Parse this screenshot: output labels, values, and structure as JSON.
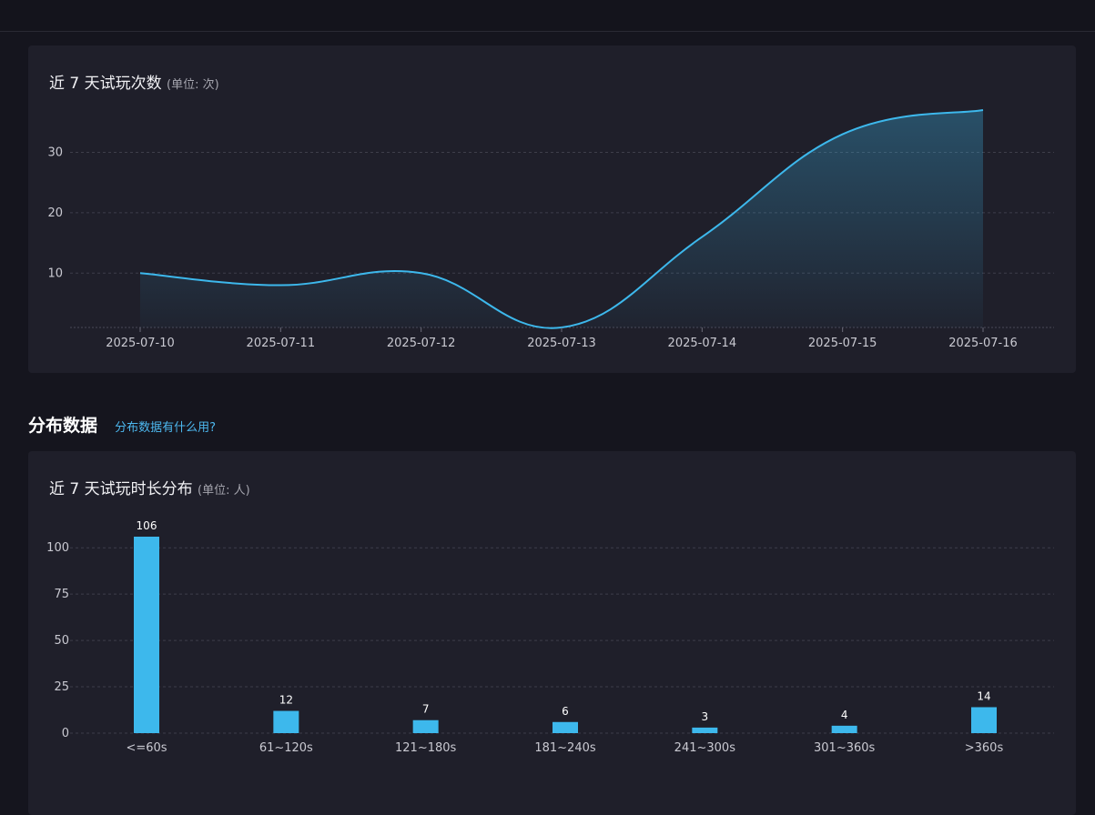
{
  "colors": {
    "accent": "#3db8ec",
    "background": "#15151e",
    "card": "#1f1f2a",
    "grid": "#3e3e4a",
    "tick_text": "#c9c9d1"
  },
  "section": {
    "title": "分布数据",
    "help_link": "分布数据有什么用?"
  },
  "chart_data": [
    {
      "type": "area",
      "title": "近 7 天试玩次数",
      "unit": "(单位: 次)",
      "x": [
        "2025-07-10",
        "2025-07-11",
        "2025-07-12",
        "2025-07-13",
        "2025-07-14",
        "2025-07-15",
        "2025-07-16"
      ],
      "values": [
        10,
        8,
        10,
        1,
        16,
        33,
        37
      ],
      "yticks": [
        10,
        20,
        30
      ],
      "ylim": [
        1,
        37
      ],
      "grid": true,
      "smooth": true
    },
    {
      "type": "bar",
      "title": "近 7 天试玩时长分布",
      "unit": "(单位: 人)",
      "categories": [
        "<=60s",
        "61~120s",
        "121~180s",
        "181~240s",
        "241~300s",
        "301~360s",
        ">360s"
      ],
      "values": [
        106,
        12,
        7,
        6,
        3,
        4,
        14
      ],
      "yticks": [
        0,
        25,
        50,
        75,
        100
      ],
      "ylim": [
        0,
        106
      ],
      "grid": true,
      "data_labels": true
    }
  ]
}
